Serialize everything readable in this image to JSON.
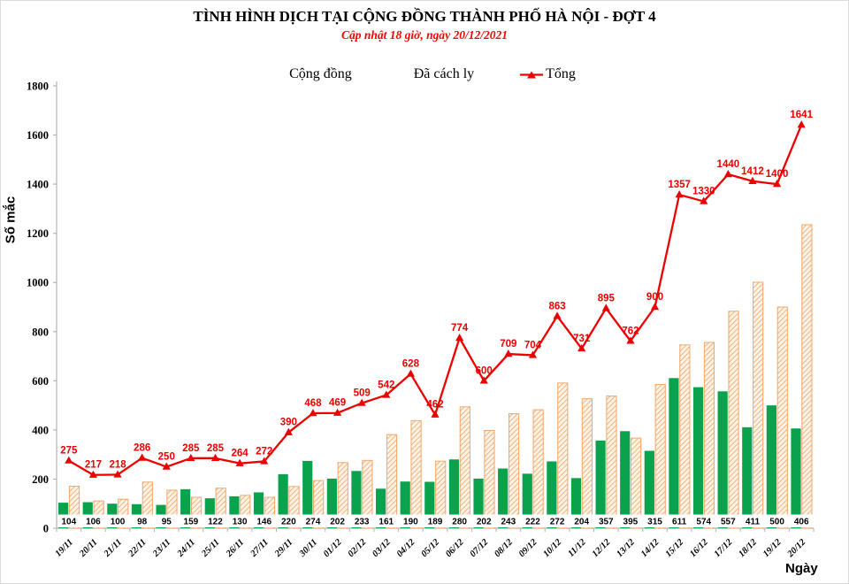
{
  "header": {
    "title": "TÌNH HÌNH DỊCH TẠI CỘNG ĐỒNG THÀNH PHỐ HÀ NỘI - ĐỢT 4",
    "subtitle": "Cập nhật 18 giờ, ngày 20/12/2021"
  },
  "legend": {
    "items": [
      {
        "label": "Cộng đồng",
        "swatch": "green-solid-square"
      },
      {
        "label": "Đã cách ly",
        "swatch": "orange-hatch-square"
      },
      {
        "label": "Tổng",
        "swatch": "red-line-triangle-marker"
      }
    ]
  },
  "colors": {
    "community_green": "#0aa24c",
    "quarantine_orange": "#f2a76b",
    "quarantine_fill": "#fdf3e6",
    "total_red": "#ec0000",
    "label_red": "#e80000",
    "subtitle_red": "#ff0000",
    "axis_gray": "#b3b3b3",
    "text_black": "#000000"
  },
  "chart_data": {
    "type": "bar+line",
    "title": "TÌNH HÌNH DỊCH TẠI CỘNG ĐỒNG THÀNH PHỐ HÀ NỘI - ĐỢT 4",
    "subtitle": "Cập nhật 18 giờ, ngày 20/12/2021",
    "xlabel": "Ngày",
    "ylabel": "Số mắc",
    "ylim": [
      0,
      1800
    ],
    "ytick_step": 200,
    "grid": false,
    "legend_position": "top-center",
    "categories": [
      "19/11",
      "20/11",
      "21/11",
      "22/11",
      "23/11",
      "24/11",
      "25/11",
      "26/11",
      "27/11",
      "29/11",
      "30/11",
      "01/12",
      "02/12",
      "03/12",
      "04/12",
      "05/12",
      "06/12",
      "07/12",
      "08/12",
      "09/12",
      "10/12",
      "11/12",
      "12/12",
      "13/12",
      "14/12",
      "15/12",
      "16/12",
      "17/12",
      "18/12",
      "19/12",
      "20/12"
    ],
    "series": [
      {
        "name": "Cộng đồng",
        "type": "bar",
        "style": "solid-green",
        "labels_shown": true,
        "values": [
          104,
          106,
          100,
          98,
          95,
          159,
          122,
          130,
          146,
          220,
          274,
          202,
          233,
          161,
          190,
          189,
          280,
          202,
          243,
          222,
          272,
          204,
          357,
          395,
          315,
          611,
          574,
          557,
          411,
          500,
          406
        ]
      },
      {
        "name": "Đã cách ly",
        "type": "bar",
        "style": "orange-diagonal-hatch",
        "labels_shown": false,
        "values": [
          171,
          111,
          118,
          188,
          155,
          126,
          163,
          134,
          126,
          170,
          194,
          267,
          276,
          381,
          438,
          273,
          494,
          398,
          466,
          482,
          591,
          527,
          538,
          367,
          585,
          746,
          756,
          883,
          1001,
          900,
          1235
        ]
      },
      {
        "name": "Tổng",
        "type": "line",
        "style": "red-line-triangle-markers",
        "labels_shown": true,
        "values": [
          275,
          217,
          218,
          286,
          250,
          285,
          285,
          264,
          272,
          390,
          468,
          469,
          509,
          542,
          628,
          462,
          774,
          600,
          709,
          704,
          863,
          731,
          895,
          762,
          900,
          1357,
          1330,
          1440,
          1412,
          1400,
          1641
        ]
      }
    ]
  }
}
